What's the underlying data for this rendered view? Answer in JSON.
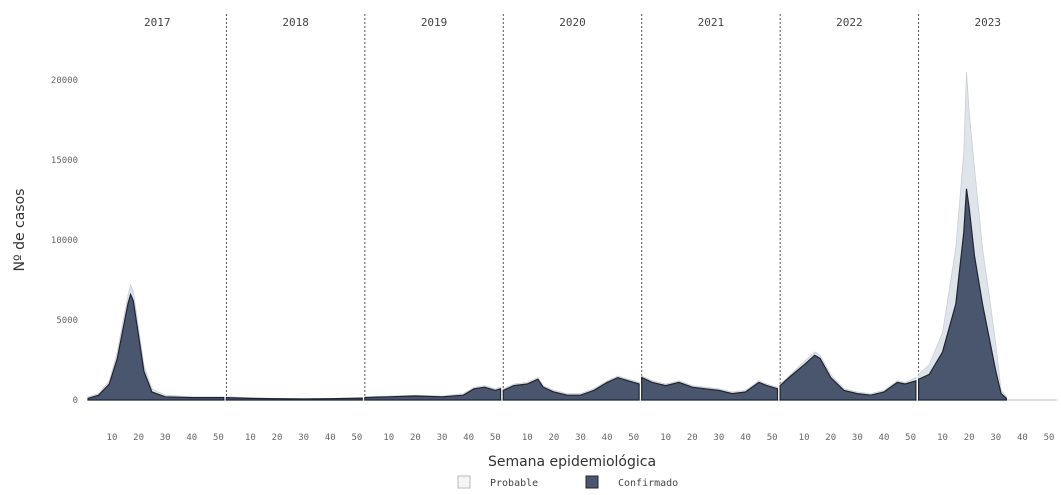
{
  "chart_data": {
    "type": "area",
    "xlabel": "Semana epidemiológica",
    "ylabel": "Nº de casos",
    "ylim": [
      0,
      22000
    ],
    "yticks": [
      0,
      5000,
      10000,
      15000,
      20000
    ],
    "ytick_labels": [
      "0",
      "5000",
      "10000",
      "15000",
      "20000"
    ],
    "xticks": [
      10,
      20,
      30,
      40,
      50
    ],
    "xtick_labels": [
      "10",
      "20",
      "30",
      "40",
      "50"
    ],
    "facets": [
      "2017",
      "2018",
      "2019",
      "2020",
      "2021",
      "2022",
      "2023"
    ],
    "legend": {
      "position": "bottom",
      "entries": [
        "Probable",
        "Confirmado"
      ]
    },
    "colors": {
      "Probable": "#dfe3ea",
      "Confirmado": "#4a566e",
      "outline": "#1f2533"
    },
    "series": [
      {
        "name": "Probable",
        "years": {
          "2017": [
            [
              1,
              200
            ],
            [
              5,
              400
            ],
            [
              9,
              1200
            ],
            [
              12,
              3000
            ],
            [
              14,
              4800
            ],
            [
              16,
              6500
            ],
            [
              17,
              7200
            ],
            [
              18,
              6800
            ],
            [
              20,
              4500
            ],
            [
              22,
              2200
            ],
            [
              25,
              700
            ],
            [
              30,
              300
            ],
            [
              40,
              200
            ],
            [
              52,
              200
            ]
          ],
          "2018": [
            [
              1,
              200
            ],
            [
              10,
              150
            ],
            [
              20,
              100
            ],
            [
              30,
              80
            ],
            [
              40,
              100
            ],
            [
              52,
              150
            ]
          ],
          "2019": [
            [
              1,
              200
            ],
            [
              10,
              250
            ],
            [
              20,
              300
            ],
            [
              30,
              250
            ],
            [
              38,
              400
            ],
            [
              42,
              800
            ],
            [
              46,
              900
            ],
            [
              50,
              700
            ],
            [
              52,
              800
            ]
          ],
          "2020": [
            [
              1,
              700
            ],
            [
              5,
              1000
            ],
            [
              10,
              1100
            ],
            [
              14,
              1400
            ],
            [
              16,
              900
            ],
            [
              20,
              600
            ],
            [
              25,
              400
            ],
            [
              30,
              400
            ],
            [
              35,
              700
            ],
            [
              40,
              1200
            ],
            [
              44,
              1500
            ],
            [
              48,
              1300
            ],
            [
              52,
              1100
            ]
          ],
          "2021": [
            [
              1,
              1500
            ],
            [
              5,
              1200
            ],
            [
              10,
              1000
            ],
            [
              15,
              1200
            ],
            [
              20,
              900
            ],
            [
              25,
              800
            ],
            [
              30,
              700
            ],
            [
              35,
              500
            ],
            [
              40,
              600
            ],
            [
              45,
              1200
            ],
            [
              48,
              1000
            ],
            [
              52,
              800
            ]
          ],
          "2022": [
            [
              1,
              1000
            ],
            [
              5,
              1600
            ],
            [
              10,
              2400
            ],
            [
              14,
              3000
            ],
            [
              16,
              2800
            ],
            [
              20,
              1600
            ],
            [
              25,
              700
            ],
            [
              30,
              500
            ],
            [
              35,
              400
            ],
            [
              40,
              600
            ],
            [
              45,
              1200
            ],
            [
              48,
              1100
            ],
            [
              52,
              1400
            ]
          ],
          "2023": [
            [
              1,
              1600
            ],
            [
              5,
              2200
            ],
            [
              10,
              4200
            ],
            [
              15,
              9500
            ],
            [
              18,
              15500
            ],
            [
              19,
              20500
            ],
            [
              20,
              18000
            ],
            [
              22,
              14500
            ],
            [
              25,
              9500
            ],
            [
              28,
              6000
            ],
            [
              30,
              3500
            ],
            [
              32,
              600
            ],
            [
              34,
              200
            ]
          ]
        }
      },
      {
        "name": "Confirmado",
        "years": {
          "2017": [
            [
              1,
              100
            ],
            [
              5,
              300
            ],
            [
              9,
              1000
            ],
            [
              12,
              2600
            ],
            [
              14,
              4300
            ],
            [
              16,
              6000
            ],
            [
              17,
              6600
            ],
            [
              18,
              6200
            ],
            [
              20,
              4000
            ],
            [
              22,
              1800
            ],
            [
              25,
              500
            ],
            [
              30,
              200
            ],
            [
              40,
              150
            ],
            [
              52,
              150
            ]
          ],
          "2018": [
            [
              1,
              150
            ],
            [
              10,
              100
            ],
            [
              20,
              80
            ],
            [
              30,
              60
            ],
            [
              40,
              80
            ],
            [
              52,
              120
            ]
          ],
          "2019": [
            [
              1,
              150
            ],
            [
              10,
              200
            ],
            [
              20,
              250
            ],
            [
              30,
              200
            ],
            [
              38,
              300
            ],
            [
              42,
              700
            ],
            [
              46,
              800
            ],
            [
              50,
              600
            ],
            [
              52,
              700
            ]
          ],
          "2020": [
            [
              1,
              600
            ],
            [
              5,
              900
            ],
            [
              10,
              1000
            ],
            [
              14,
              1300
            ],
            [
              16,
              800
            ],
            [
              20,
              500
            ],
            [
              25,
              300
            ],
            [
              30,
              300
            ],
            [
              35,
              600
            ],
            [
              40,
              1100
            ],
            [
              44,
              1400
            ],
            [
              48,
              1200
            ],
            [
              52,
              1000
            ]
          ],
          "2021": [
            [
              1,
              1400
            ],
            [
              5,
              1100
            ],
            [
              10,
              900
            ],
            [
              15,
              1100
            ],
            [
              20,
              800
            ],
            [
              25,
              700
            ],
            [
              30,
              600
            ],
            [
              35,
              400
            ],
            [
              40,
              500
            ],
            [
              45,
              1100
            ],
            [
              48,
              900
            ],
            [
              52,
              700
            ]
          ],
          "2022": [
            [
              1,
              900
            ],
            [
              5,
              1500
            ],
            [
              10,
              2200
            ],
            [
              14,
              2800
            ],
            [
              16,
              2600
            ],
            [
              20,
              1400
            ],
            [
              25,
              600
            ],
            [
              30,
              400
            ],
            [
              35,
              300
            ],
            [
              40,
              500
            ],
            [
              45,
              1100
            ],
            [
              48,
              1000
            ],
            [
              52,
              1200
            ]
          ],
          "2023": [
            [
              1,
              1300
            ],
            [
              5,
              1600
            ],
            [
              10,
              3000
            ],
            [
              15,
              6000
            ],
            [
              18,
              10500
            ],
            [
              19,
              13200
            ],
            [
              20,
              12000
            ],
            [
              22,
              9000
            ],
            [
              25,
              6000
            ],
            [
              28,
              3500
            ],
            [
              30,
              1800
            ],
            [
              32,
              400
            ],
            [
              34,
              100
            ]
          ]
        }
      }
    ]
  }
}
